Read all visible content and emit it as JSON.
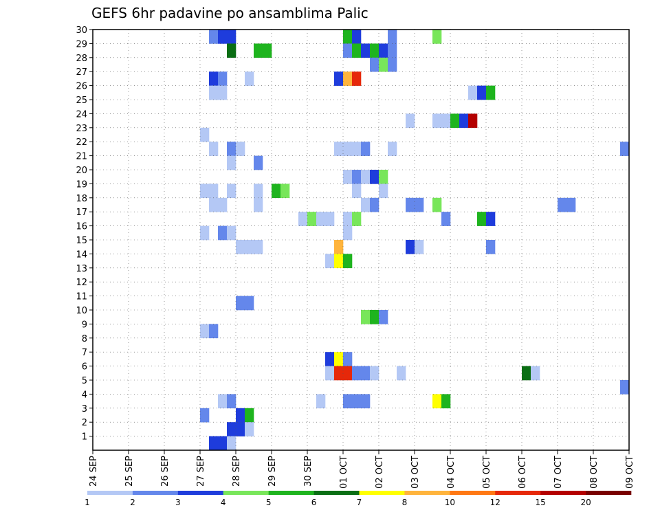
{
  "chart_data": {
    "type": "heatmap",
    "title": "GEFS 6hr padavine po ansamblima Palic",
    "xlabel": "",
    "ylabel": "",
    "x_ticks": [
      "24 SEP",
      "25 SEP",
      "26 SEP",
      "27 SEP",
      "28 SEP",
      "29 SEP",
      "30 SEP",
      "01 OCT",
      "02 OCT",
      "03 OCT",
      "04 OCT",
      "05 OCT",
      "06 OCT",
      "07 OCT",
      "08 OCT",
      "09 OCT"
    ],
    "y_ticks": [
      "1",
      "2",
      "3",
      "4",
      "5",
      "6",
      "7",
      "8",
      "9",
      "10",
      "11",
      "12",
      "13",
      "14",
      "15",
      "16",
      "17",
      "18",
      "19",
      "20",
      "21",
      "22",
      "23",
      "24",
      "25",
      "26",
      "27",
      "28",
      "29",
      "30"
    ],
    "x_range_steps": [
      0,
      60
    ],
    "y_range": [
      0,
      30
    ],
    "grid": true,
    "legend": {
      "placement": "bottom",
      "labels": [
        "1",
        "2",
        "3",
        "4",
        "5",
        "6",
        "7",
        "8",
        "10",
        "12",
        "15",
        "20"
      ],
      "colors": [
        "#b4c8f5",
        "#6487eb",
        "#1e3cdc",
        "#78e65a",
        "#1eb41e",
        "#0a6e14",
        "#ffff00",
        "#ffb43c",
        "#ff7814",
        "#e6280a",
        "#b40000",
        "#780000"
      ]
    },
    "cells": [
      {
        "member": 30,
        "step": 13,
        "level": 1
      },
      {
        "member": 30,
        "step": 14,
        "level": 2
      },
      {
        "member": 30,
        "step": 15,
        "level": 2
      },
      {
        "member": 30,
        "step": 28,
        "level": 4
      },
      {
        "member": 30,
        "step": 29,
        "level": 2
      },
      {
        "member": 30,
        "step": 33,
        "level": 1
      },
      {
        "member": 30,
        "step": 38,
        "level": 3
      },
      {
        "member": 29,
        "step": 15,
        "level": 5
      },
      {
        "member": 29,
        "step": 18,
        "level": 4
      },
      {
        "member": 29,
        "step": 19,
        "level": 4
      },
      {
        "member": 29,
        "step": 28,
        "level": 1
      },
      {
        "member": 29,
        "step": 29,
        "level": 4
      },
      {
        "member": 29,
        "step": 30,
        "level": 2
      },
      {
        "member": 29,
        "step": 31,
        "level": 4
      },
      {
        "member": 29,
        "step": 32,
        "level": 2
      },
      {
        "member": 29,
        "step": 33,
        "level": 1
      },
      {
        "member": 28,
        "step": 31,
        "level": 1
      },
      {
        "member": 28,
        "step": 32,
        "level": 3
      },
      {
        "member": 28,
        "step": 33,
        "level": 1
      },
      {
        "member": 27,
        "step": 13,
        "level": 2
      },
      {
        "member": 27,
        "step": 14,
        "level": 1
      },
      {
        "member": 27,
        "step": 17,
        "level": 0
      },
      {
        "member": 27,
        "step": 27,
        "level": 2
      },
      {
        "member": 27,
        "step": 28,
        "level": 7
      },
      {
        "member": 27,
        "step": 29,
        "level": 9
      },
      {
        "member": 26,
        "step": 13,
        "level": 0
      },
      {
        "member": 26,
        "step": 14,
        "level": 0
      },
      {
        "member": 26,
        "step": 42,
        "level": 0
      },
      {
        "member": 26,
        "step": 43,
        "level": 2
      },
      {
        "member": 26,
        "step": 44,
        "level": 4
      },
      {
        "member": 24,
        "step": 35,
        "level": 0
      },
      {
        "member": 24,
        "step": 38,
        "level": 0
      },
      {
        "member": 24,
        "step": 39,
        "level": 0
      },
      {
        "member": 24,
        "step": 40,
        "level": 4
      },
      {
        "member": 24,
        "step": 41,
        "level": 2
      },
      {
        "member": 24,
        "step": 42,
        "level": 10
      },
      {
        "member": 23,
        "step": 12,
        "level": 0
      },
      {
        "member": 22,
        "step": 13,
        "level": 0
      },
      {
        "member": 22,
        "step": 15,
        "level": 1
      },
      {
        "member": 22,
        "step": 16,
        "level": 0
      },
      {
        "member": 22,
        "step": 27,
        "level": 0
      },
      {
        "member": 22,
        "step": 28,
        "level": 0
      },
      {
        "member": 22,
        "step": 29,
        "level": 0
      },
      {
        "member": 22,
        "step": 30,
        "level": 1
      },
      {
        "member": 22,
        "step": 33,
        "level": 0
      },
      {
        "member": 22,
        "step": 59,
        "level": 1
      },
      {
        "member": 21,
        "step": 15,
        "level": 0
      },
      {
        "member": 21,
        "step": 18,
        "level": 1
      },
      {
        "member": 20,
        "step": 28,
        "level": 0
      },
      {
        "member": 20,
        "step": 29,
        "level": 1
      },
      {
        "member": 20,
        "step": 30,
        "level": 0
      },
      {
        "member": 20,
        "step": 31,
        "level": 2
      },
      {
        "member": 20,
        "step": 32,
        "level": 3
      },
      {
        "member": 19,
        "step": 12,
        "level": 0
      },
      {
        "member": 19,
        "step": 13,
        "level": 0
      },
      {
        "member": 19,
        "step": 15,
        "level": 0
      },
      {
        "member": 19,
        "step": 18,
        "level": 0
      },
      {
        "member": 19,
        "step": 20,
        "level": 4
      },
      {
        "member": 19,
        "step": 21,
        "level": 3
      },
      {
        "member": 19,
        "step": 29,
        "level": 0
      },
      {
        "member": 19,
        "step": 32,
        "level": 0
      },
      {
        "member": 18,
        "step": 13,
        "level": 0
      },
      {
        "member": 18,
        "step": 14,
        "level": 0
      },
      {
        "member": 18,
        "step": 18,
        "level": 0
      },
      {
        "member": 18,
        "step": 30,
        "level": 0
      },
      {
        "member": 18,
        "step": 31,
        "level": 1
      },
      {
        "member": 18,
        "step": 35,
        "level": 1
      },
      {
        "member": 18,
        "step": 36,
        "level": 1
      },
      {
        "member": 18,
        "step": 38,
        "level": 3
      },
      {
        "member": 18,
        "step": 52,
        "level": 1
      },
      {
        "member": 18,
        "step": 53,
        "level": 1
      },
      {
        "member": 17,
        "step": 23,
        "level": 0
      },
      {
        "member": 17,
        "step": 24,
        "level": 3
      },
      {
        "member": 17,
        "step": 25,
        "level": 0
      },
      {
        "member": 17,
        "step": 26,
        "level": 0
      },
      {
        "member": 17,
        "step": 28,
        "level": 0
      },
      {
        "member": 17,
        "step": 29,
        "level": 3
      },
      {
        "member": 17,
        "step": 39,
        "level": 1
      },
      {
        "member": 17,
        "step": 43,
        "level": 4
      },
      {
        "member": 17,
        "step": 44,
        "level": 2
      },
      {
        "member": 16,
        "step": 12,
        "level": 0
      },
      {
        "member": 16,
        "step": 14,
        "level": 1
      },
      {
        "member": 16,
        "step": 15,
        "level": 0
      },
      {
        "member": 16,
        "step": 28,
        "level": 0
      },
      {
        "member": 15,
        "step": 16,
        "level": 0
      },
      {
        "member": 15,
        "step": 17,
        "level": 0
      },
      {
        "member": 15,
        "step": 18,
        "level": 0
      },
      {
        "member": 15,
        "step": 27,
        "level": 7
      },
      {
        "member": 15,
        "step": 35,
        "level": 2
      },
      {
        "member": 15,
        "step": 36,
        "level": 0
      },
      {
        "member": 15,
        "step": 44,
        "level": 1
      },
      {
        "member": 14,
        "step": 26,
        "level": 0
      },
      {
        "member": 14,
        "step": 27,
        "level": 6
      },
      {
        "member": 14,
        "step": 28,
        "level": 4
      },
      {
        "member": 11,
        "step": 16,
        "level": 1
      },
      {
        "member": 11,
        "step": 17,
        "level": 1
      },
      {
        "member": 10,
        "step": 30,
        "level": 3
      },
      {
        "member": 10,
        "step": 31,
        "level": 4
      },
      {
        "member": 10,
        "step": 32,
        "level": 1
      },
      {
        "member": 9,
        "step": 12,
        "level": 0
      },
      {
        "member": 9,
        "step": 13,
        "level": 1
      },
      {
        "member": 7,
        "step": 26,
        "level": 2
      },
      {
        "member": 7,
        "step": 27,
        "level": 6
      },
      {
        "member": 7,
        "step": 28,
        "level": 1
      },
      {
        "member": 6,
        "step": 26,
        "level": 0
      },
      {
        "member": 6,
        "step": 27,
        "level": 9
      },
      {
        "member": 6,
        "step": 28,
        "level": 9
      },
      {
        "member": 6,
        "step": 29,
        "level": 1
      },
      {
        "member": 6,
        "step": 30,
        "level": 1
      },
      {
        "member": 6,
        "step": 31,
        "level": 0
      },
      {
        "member": 6,
        "step": 34,
        "level": 0
      },
      {
        "member": 6,
        "step": 48,
        "level": 5
      },
      {
        "member": 6,
        "step": 49,
        "level": 0
      },
      {
        "member": 5,
        "step": 59,
        "level": 1
      },
      {
        "member": 4,
        "step": 14,
        "level": 0
      },
      {
        "member": 4,
        "step": 15,
        "level": 1
      },
      {
        "member": 4,
        "step": 25,
        "level": 0
      },
      {
        "member": 4,
        "step": 28,
        "level": 1
      },
      {
        "member": 4,
        "step": 29,
        "level": 1
      },
      {
        "member": 4,
        "step": 30,
        "level": 1
      },
      {
        "member": 4,
        "step": 38,
        "level": 6
      },
      {
        "member": 4,
        "step": 39,
        "level": 4
      },
      {
        "member": 3,
        "step": 12,
        "level": 1
      },
      {
        "member": 3,
        "step": 16,
        "level": 2
      },
      {
        "member": 3,
        "step": 17,
        "level": 4
      },
      {
        "member": 2,
        "step": 15,
        "level": 2
      },
      {
        "member": 2,
        "step": 16,
        "level": 2
      },
      {
        "member": 2,
        "step": 17,
        "level": 0
      },
      {
        "member": 1,
        "step": 13,
        "level": 2
      },
      {
        "member": 1,
        "step": 14,
        "level": 2
      },
      {
        "member": 1,
        "step": 15,
        "level": 0
      }
    ]
  }
}
